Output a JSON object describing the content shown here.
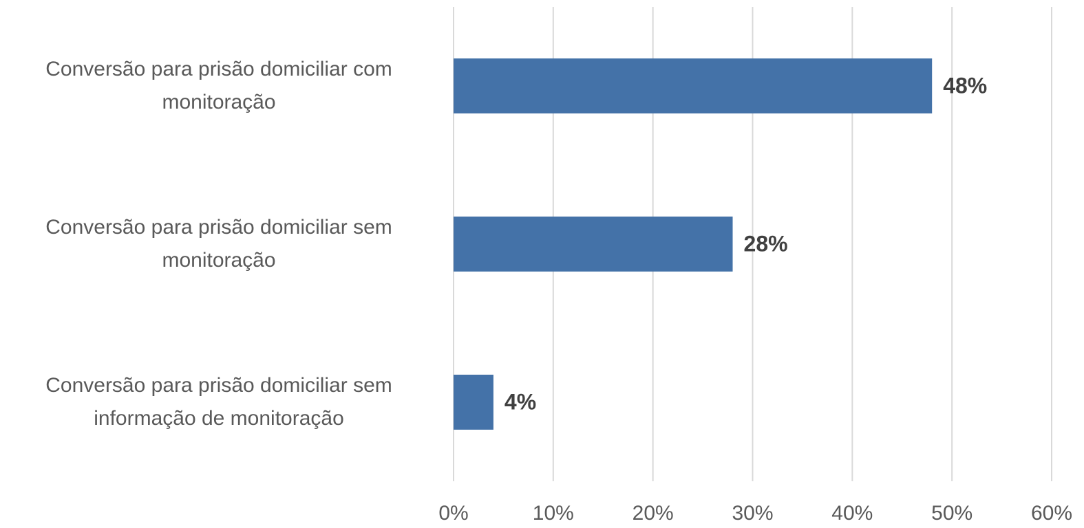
{
  "chart_data": {
    "type": "barh",
    "categories": [
      "Conversão para prisão domiciliar com monitoração",
      "Conversão para prisão domiciliar sem monitoração",
      "Conversão para prisão domiciliar sem informação de monitoração"
    ],
    "values": [
      48,
      28,
      4
    ],
    "value_labels": [
      "48%",
      "28%",
      "4%"
    ],
    "color": "#4472a8",
    "xlim": [
      0,
      60
    ],
    "xticks": [
      {
        "value": 0,
        "label": "0%"
      },
      {
        "value": 10,
        "label": "10%"
      },
      {
        "value": 20,
        "label": "20%"
      },
      {
        "value": 30,
        "label": "30%"
      },
      {
        "value": 40,
        "label": "40%"
      },
      {
        "value": 50,
        "label": "50%"
      },
      {
        "value": 60,
        "label": "60%"
      }
    ],
    "grid": true
  }
}
